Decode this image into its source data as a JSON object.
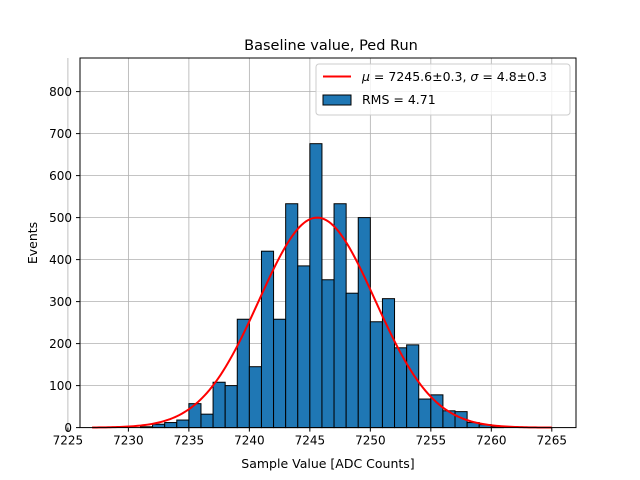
{
  "chart_data": {
    "type": "bar",
    "title": "Baseline value, Ped Run",
    "xlabel": "Sample Value [ADC Counts]",
    "ylabel": "Events",
    "xlim": [
      7226,
      7267
    ],
    "ylim": [
      0,
      880
    ],
    "x_ticks": [
      7225,
      7230,
      7235,
      7240,
      7245,
      7250,
      7255,
      7260,
      7265
    ],
    "y_ticks": [
      0,
      100,
      200,
      300,
      400,
      500,
      600,
      700,
      800
    ],
    "grid": true,
    "legend_position": "top-right",
    "bin_width": 1,
    "bins": [
      7231,
      7232,
      7233,
      7234,
      7235,
      7236,
      7237,
      7238,
      7239,
      7240,
      7241,
      7242,
      7243,
      7244,
      7245,
      7246,
      7247,
      7248,
      7249,
      7250,
      7251,
      7252,
      7253,
      7254,
      7255,
      7256,
      7257,
      7258,
      7259,
      7260
    ],
    "values": [
      2,
      8,
      12,
      18,
      57,
      32,
      108,
      100,
      258,
      145,
      420,
      258,
      533,
      385,
      676,
      352,
      533,
      320,
      500,
      252,
      307,
      190,
      197,
      68,
      78,
      40,
      38,
      12,
      7,
      3
    ],
    "histogram_color": "#1f77b4",
    "histogram_legend": "RMS = 4.71",
    "fit": {
      "label_mu": "μ",
      "label_mu_rest": " = 7245.6±0.3, ",
      "label_sigma": "σ",
      "label_sigma_rest": " = 4.8±0.3",
      "mu": 7245.6,
      "sigma": 4.8,
      "amplitude": 500,
      "x_range": [
        7227,
        7265
      ],
      "color": "#ff0000"
    }
  }
}
